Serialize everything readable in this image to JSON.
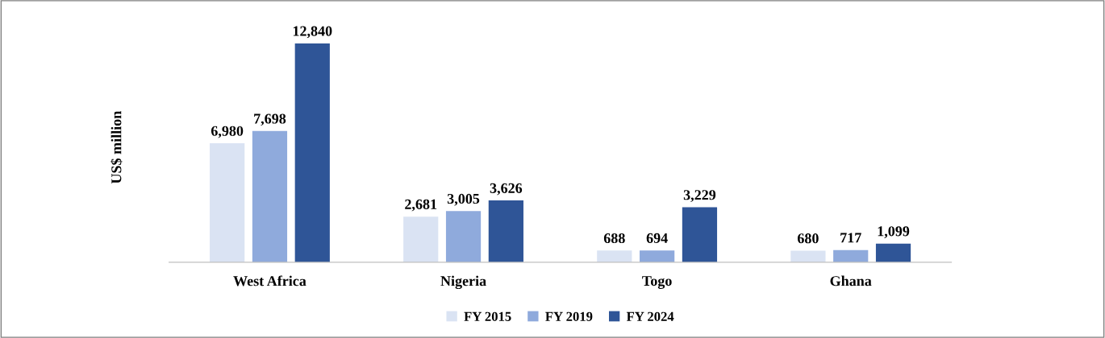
{
  "chart_data": {
    "type": "bar",
    "ylabel": "US$ million",
    "categories": [
      "West Africa",
      "Nigeria",
      "Togo",
      "Ghana"
    ],
    "series": [
      {
        "name": "FY 2015",
        "color": "#dae3f3",
        "values": [
          6980,
          2681,
          688,
          680
        ],
        "value_labels": [
          "6,980",
          "2,681",
          "688",
          "680"
        ]
      },
      {
        "name": "FY 2019",
        "color": "#8faadc",
        "values": [
          7698,
          3005,
          694,
          717
        ],
        "value_labels": [
          "7,698",
          "3,005",
          "694",
          "717"
        ]
      },
      {
        "name": "FY 2024",
        "color": "#2f5597",
        "values": [
          12840,
          3626,
          3229,
          1099
        ],
        "value_labels": [
          "12,840",
          "3,626",
          "3,229",
          "1,099"
        ]
      }
    ],
    "grid": false,
    "legend": "bottom"
  }
}
